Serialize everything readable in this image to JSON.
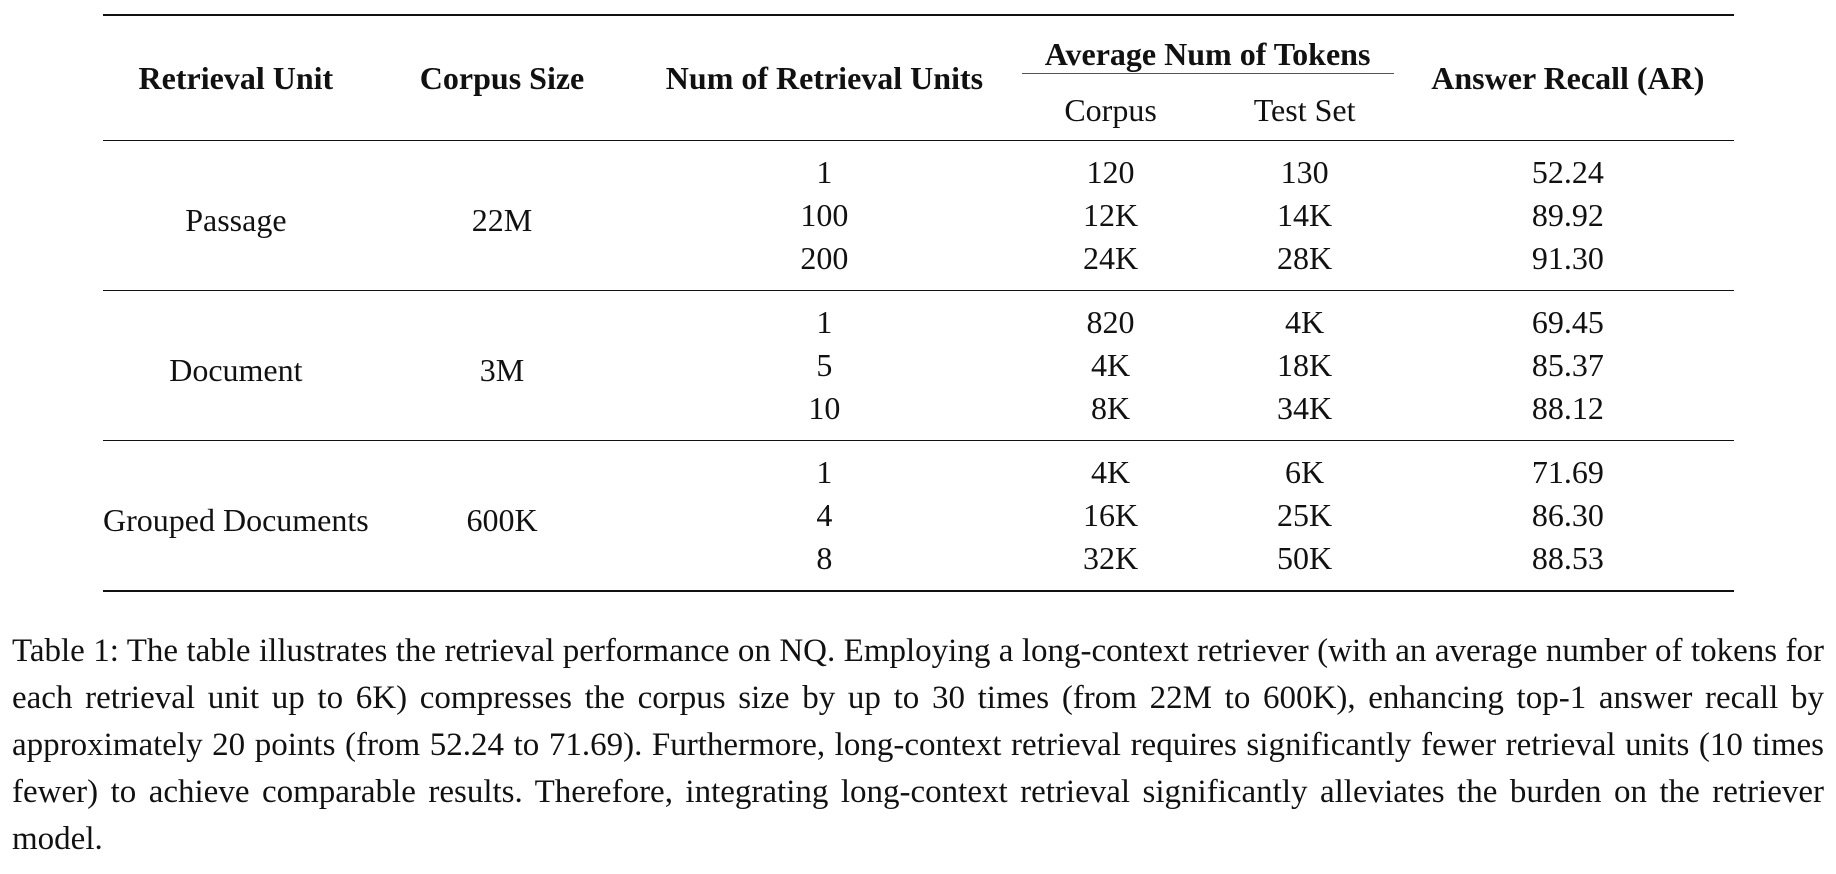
{
  "table": {
    "headers": {
      "retrieval_unit": "Retrieval Unit",
      "corpus_size": "Corpus Size",
      "num_units": "Num of Retrieval Units",
      "avg_tokens": "Average Num of Tokens",
      "corpus": "Corpus",
      "test_set": "Test Set",
      "answer_recall": "Answer Recall (AR)"
    },
    "groups": [
      {
        "unit": "Passage",
        "size": "22M",
        "rows": [
          {
            "num": "1",
            "corpus": "120",
            "test": "130",
            "ar": "52.24"
          },
          {
            "num": "100",
            "corpus": "12K",
            "test": "14K",
            "ar": "89.92"
          },
          {
            "num": "200",
            "corpus": "24K",
            "test": "28K",
            "ar": "91.30"
          }
        ]
      },
      {
        "unit": "Document",
        "size": "3M",
        "rows": [
          {
            "num": "1",
            "corpus": "820",
            "test": "4K",
            "ar": "69.45"
          },
          {
            "num": "5",
            "corpus": "4K",
            "test": "18K",
            "ar": "85.37"
          },
          {
            "num": "10",
            "corpus": "8K",
            "test": "34K",
            "ar": "88.12"
          }
        ]
      },
      {
        "unit": "Grouped Documents",
        "size": "600K",
        "rows": [
          {
            "num": "1",
            "corpus": "4K",
            "test": "6K",
            "ar": "71.69"
          },
          {
            "num": "4",
            "corpus": "16K",
            "test": "25K",
            "ar": "86.30"
          },
          {
            "num": "8",
            "corpus": "32K",
            "test": "50K",
            "ar": "88.53"
          }
        ]
      }
    ]
  },
  "caption": "Table 1: The table illustrates the retrieval performance on NQ. Employing a long-context retriever (with an average number of tokens for each retrieval unit up to 6K) compresses the corpus size by up to 30 times (from 22M to 600K), enhancing top-1 answer recall by approximately 20 points (from 52.24 to 71.69). Furthermore, long-context retrieval requires significantly fewer retrieval units (10 times fewer) to achieve comparable results. Therefore, integrating long-context retrieval significantly alleviates the burden on the retriever model."
}
